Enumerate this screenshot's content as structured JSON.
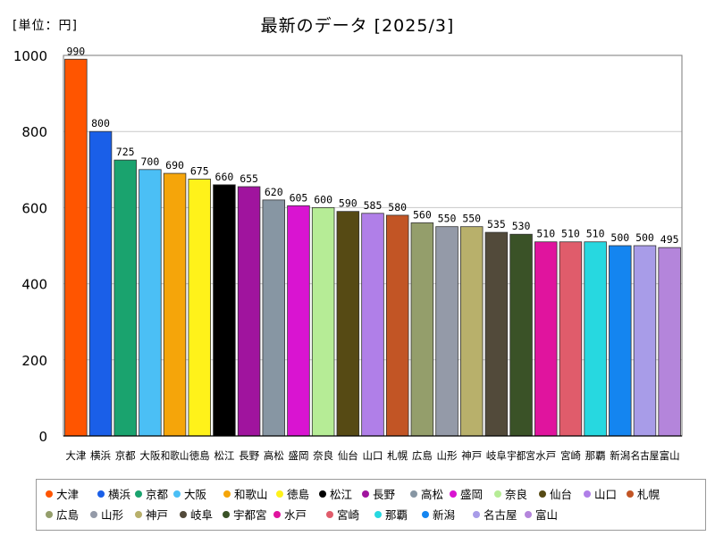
{
  "unit_label": "[単位：円]",
  "chart_data": {
    "type": "bar",
    "title": "最新のデータ [2025/3]",
    "xlabel": "",
    "ylabel": "[単位：円]",
    "ylim": [
      0,
      1000
    ],
    "yticks": [
      0,
      200,
      400,
      600,
      800,
      1000
    ],
    "grid": true,
    "legend_position": "bottom",
    "categories": [
      "大津",
      "横浜",
      "京都",
      "大阪",
      "和歌山",
      "徳島",
      "松江",
      "長野",
      "高松",
      "盛岡",
      "奈良",
      "仙台",
      "山口",
      "札幌",
      "広島",
      "山形",
      "神戸",
      "岐阜",
      "宇都宮",
      "水戸",
      "宮崎",
      "那覇",
      "新潟",
      "名古屋",
      "富山"
    ],
    "values": [
      990,
      800,
      725,
      700,
      690,
      675,
      660,
      655,
      620,
      605,
      600,
      590,
      585,
      580,
      560,
      550,
      550,
      535,
      530,
      510,
      510,
      510,
      500,
      500,
      495
    ],
    "colors": [
      "#ff5500",
      "#1a5fe8",
      "#1aa36e",
      "#4bbff5",
      "#f5a50a",
      "#fff21a",
      "#000000",
      "#a0149e",
      "#8796a3",
      "#d914d1",
      "#b6ec96",
      "#564a14",
      "#b07fe8",
      "#c25525",
      "#949e6b",
      "#949aa8",
      "#b8b06b",
      "#524a3a",
      "#3a5227",
      "#e0149e",
      "#e05c6b",
      "#27d8e0",
      "#1485f0",
      "#a89ce8",
      "#b485db"
    ]
  }
}
